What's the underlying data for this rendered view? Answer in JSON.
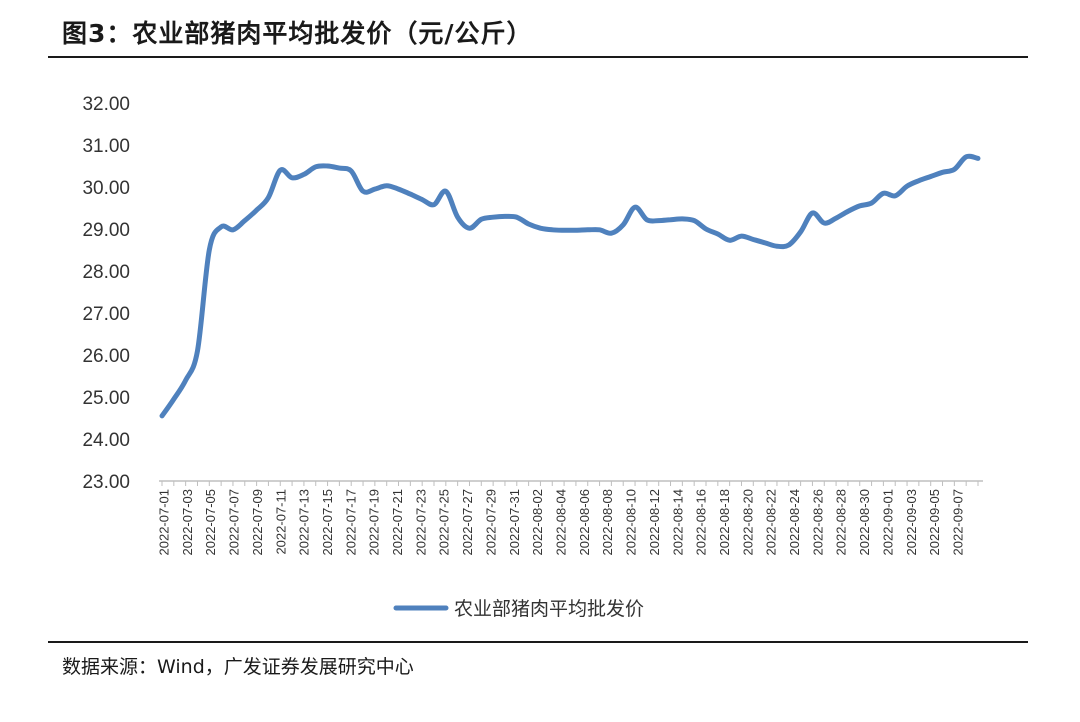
{
  "figure": {
    "title": "图3：农业部猪肉平均批发价（元/公斤）",
    "source": "数据来源：Wind，广发证券发展研究中心"
  },
  "colors": {
    "series": "#4f81bd",
    "axis": "#bfbfbf",
    "text": "#333333"
  },
  "chart_data": {
    "type": "line",
    "title": "",
    "xlabel": "",
    "ylabel": "",
    "ylim": [
      23,
      32
    ],
    "yticks": [
      "23.00",
      "24.00",
      "25.00",
      "26.00",
      "27.00",
      "28.00",
      "29.00",
      "30.00",
      "31.00",
      "32.00"
    ],
    "xtick_labels": [
      "2022-07-01",
      "2022-07-03",
      "2022-07-05",
      "2022-07-07",
      "2022-07-09",
      "2022-07-11",
      "2022-07-13",
      "2022-07-15",
      "2022-07-17",
      "2022-07-19",
      "2022-07-21",
      "2022-07-23",
      "2022-07-25",
      "2022-07-27",
      "2022-07-29",
      "2022-07-31",
      "2022-08-02",
      "2022-08-04",
      "2022-08-06",
      "2022-08-08",
      "2022-08-10",
      "2022-08-12",
      "2022-08-14",
      "2022-08-16",
      "2022-08-18",
      "2022-08-20",
      "2022-08-22",
      "2022-08-24",
      "2022-08-26",
      "2022-08-28",
      "2022-08-30",
      "2022-09-01",
      "2022-09-03",
      "2022-09-05",
      "2022-09-07"
    ],
    "grid": false,
    "legend_position": "bottom",
    "series": [
      {
        "name": "农业部猪肉平均批发价",
        "x": [
          "2022-07-01",
          "2022-07-02",
          "2022-07-03",
          "2022-07-04",
          "2022-07-05",
          "2022-07-06",
          "2022-07-07",
          "2022-07-08",
          "2022-07-09",
          "2022-07-10",
          "2022-07-11",
          "2022-07-12",
          "2022-07-13",
          "2022-07-14",
          "2022-07-15",
          "2022-07-16",
          "2022-07-17",
          "2022-07-18",
          "2022-07-19",
          "2022-07-20",
          "2022-07-21",
          "2022-07-22",
          "2022-07-23",
          "2022-07-24",
          "2022-07-25",
          "2022-07-26",
          "2022-07-27",
          "2022-07-28",
          "2022-07-29",
          "2022-07-30",
          "2022-07-31",
          "2022-08-01",
          "2022-08-02",
          "2022-08-03",
          "2022-08-04",
          "2022-08-05",
          "2022-08-06",
          "2022-08-07",
          "2022-08-08",
          "2022-08-09",
          "2022-08-10",
          "2022-08-11",
          "2022-08-12",
          "2022-08-13",
          "2022-08-14",
          "2022-08-15",
          "2022-08-16",
          "2022-08-17",
          "2022-08-18",
          "2022-08-19",
          "2022-08-20",
          "2022-08-21",
          "2022-08-22",
          "2022-08-23",
          "2022-08-24",
          "2022-08-25",
          "2022-08-26",
          "2022-08-27",
          "2022-08-28",
          "2022-08-29",
          "2022-08-30",
          "2022-08-31",
          "2022-09-01",
          "2022-09-02",
          "2022-09-03",
          "2022-09-04",
          "2022-09-05",
          "2022-09-06",
          "2022-09-07",
          "2022-09-08"
        ],
        "values": [
          24.55,
          24.95,
          25.4,
          26.1,
          28.5,
          29.05,
          28.98,
          29.2,
          29.45,
          29.75,
          30.4,
          30.22,
          30.3,
          30.48,
          30.5,
          30.45,
          30.38,
          29.9,
          29.95,
          30.03,
          29.95,
          29.83,
          29.7,
          29.58,
          29.9,
          29.28,
          29.02,
          29.23,
          29.28,
          29.3,
          29.28,
          29.12,
          29.02,
          28.98,
          28.97,
          28.97,
          28.98,
          28.98,
          28.9,
          29.1,
          29.52,
          29.22,
          29.2,
          29.22,
          29.24,
          29.2,
          29.0,
          28.88,
          28.73,
          28.83,
          28.75,
          28.67,
          28.59,
          28.62,
          28.93,
          29.38,
          29.14,
          29.26,
          29.42,
          29.55,
          29.62,
          29.85,
          29.79,
          30.02,
          30.15,
          30.25,
          30.35,
          30.42,
          30.72,
          30.68
        ]
      }
    ]
  }
}
